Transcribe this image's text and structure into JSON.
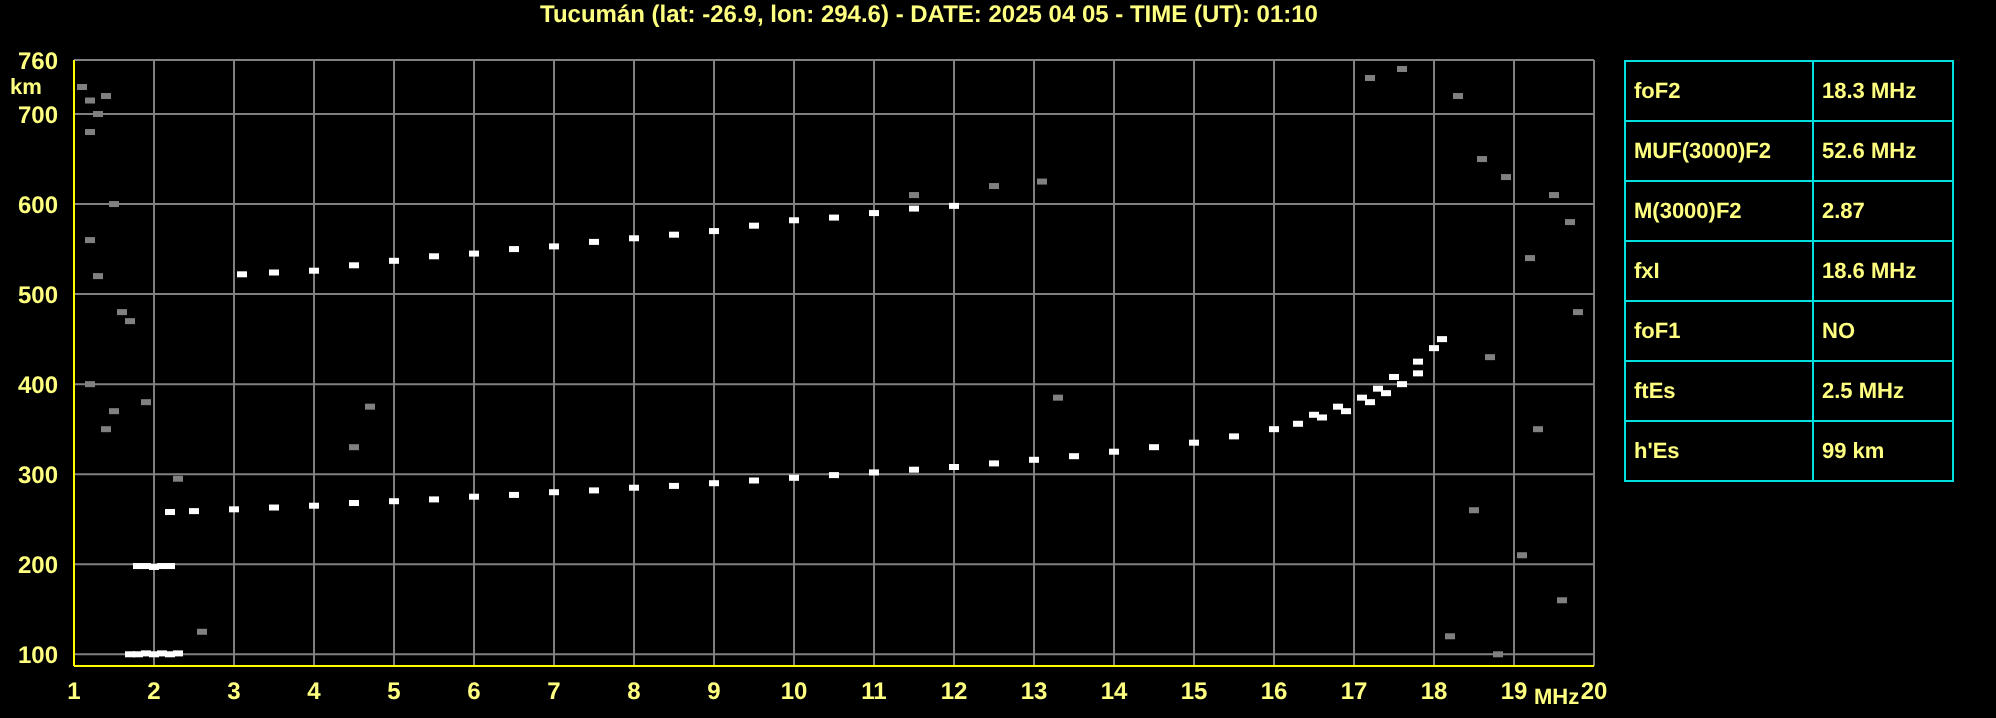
{
  "chart_data": {
    "type": "scatter",
    "title": "Tucumán (lat: -26.9, lon: 294.6) - DATE: 2025 04 05 - TIME (UT): 01:10",
    "xlabel": "MHz",
    "ylabel": "km",
    "xlim": [
      1,
      20
    ],
    "ylim": [
      87,
      760
    ],
    "xticks": [
      1,
      2,
      3,
      4,
      5,
      6,
      7,
      8,
      9,
      10,
      11,
      12,
      13,
      14,
      15,
      16,
      17,
      18,
      19,
      20
    ],
    "yticks": [
      100,
      200,
      300,
      400,
      500,
      600,
      700,
      760
    ],
    "grid": true,
    "legend": false,
    "marker": "square",
    "series": [
      {
        "color": "#ffffff",
        "x": [
          2.2,
          2.5,
          3,
          3.5,
          4,
          4.5,
          5,
          5.5,
          6,
          6.5,
          7,
          7.5,
          8,
          8.5,
          9,
          9.5,
          10,
          10.5,
          11,
          11.5,
          12,
          12.5,
          13,
          13.5,
          14,
          14.5,
          15,
          15.5,
          16,
          16.3,
          16.6,
          16.9,
          17.2,
          17.4,
          17.6,
          17.8
        ],
        "values": [
          258,
          259,
          261,
          263,
          265,
          268,
          270,
          272,
          275,
          277,
          280,
          282,
          285,
          287,
          290,
          293,
          296,
          299,
          302,
          305,
          308,
          312,
          316,
          320,
          325,
          330,
          335,
          342,
          350,
          356,
          363,
          370,
          380,
          390,
          400,
          412
        ]
      },
      {
        "color": "#ffffff",
        "x": [
          16.5,
          16.8,
          17.1,
          17.3,
          17.5,
          17.8,
          18,
          18.1
        ],
        "values": [
          366,
          375,
          385,
          395,
          408,
          425,
          440,
          450
        ]
      },
      {
        "color": "#ffffff",
        "x": [
          3.1,
          3.5,
          4,
          4.5,
          5,
          5.5,
          6,
          6.5,
          7,
          7.5,
          8,
          8.5,
          9,
          9.5,
          10,
          10.5,
          11,
          11.5,
          12
        ],
        "values": [
          522,
          524,
          526,
          532,
          537,
          542,
          545,
          550,
          553,
          558,
          562,
          566,
          570,
          576,
          582,
          585,
          590,
          595,
          598
        ]
      },
      {
        "color": "#ffffff",
        "x": [
          1.7,
          1.8,
          1.9,
          2,
          2.1,
          2.2,
          2.3
        ],
        "values": [
          100,
          100,
          101,
          100,
          101,
          100,
          101
        ]
      },
      {
        "color": "#ffffff",
        "x": [
          1.8,
          1.9,
          2,
          2.1,
          2.2
        ],
        "values": [
          198,
          198,
          197,
          198,
          198
        ]
      },
      {
        "color": "#808080",
        "x": [
          1.1,
          1.2,
          1.3,
          1.2,
          1.4,
          1.5,
          1.2,
          1.3,
          1.6,
          1.7,
          1.2,
          1.4,
          1.5,
          1.9,
          2.3,
          2.6,
          4.5,
          4.7,
          11.5,
          12.5,
          13.1,
          13.3,
          17.6,
          18.3,
          18.6,
          18.9,
          19.2,
          19.5,
          19.7,
          18.7,
          19.3,
          19.8,
          18.5,
          19.1,
          19.6,
          17.2,
          18.2,
          18.8
        ],
        "values": [
          730,
          715,
          700,
          680,
          720,
          600,
          560,
          520,
          480,
          470,
          400,
          350,
          370,
          380,
          295,
          125,
          330,
          375,
          610,
          620,
          625,
          385,
          750,
          720,
          650,
          630,
          540,
          610,
          580,
          430,
          350,
          480,
          260,
          210,
          160,
          740,
          120,
          100
        ]
      }
    ],
    "annotations": [
      "foF2",
      "18.3 MHz",
      "MUF(3000)F2",
      "52.6 MHz",
      "M(3000)F2",
      "2.87",
      "fxI",
      "18.6 MHz",
      "foF1",
      "NO",
      "ftEs",
      "2.5 MHz",
      "h'Es",
      "99 km"
    ]
  }
}
